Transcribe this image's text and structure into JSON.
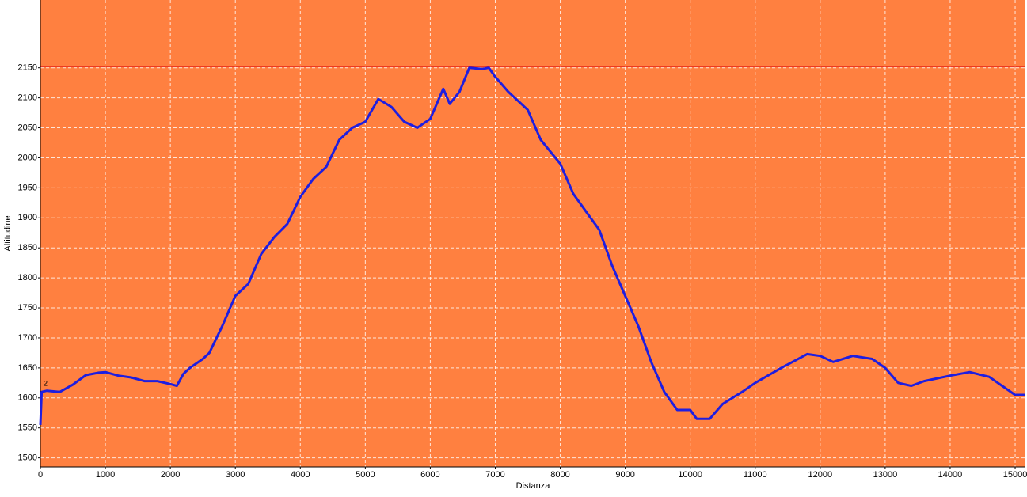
{
  "chart_data": {
    "type": "line",
    "x_label": "Distanza",
    "y_label": "Altitudine",
    "annotation": "2",
    "x": [
      0,
      20,
      100,
      300,
      500,
      700,
      900,
      1000,
      1200,
      1400,
      1600,
      1800,
      2000,
      2100,
      2200,
      2300,
      2500,
      2600,
      2800,
      3000,
      3200,
      3400,
      3600,
      3800,
      4000,
      4200,
      4400,
      4600,
      4800,
      5000,
      5200,
      5400,
      5600,
      5800,
      6000,
      6200,
      6300,
      6450,
      6600,
      6800,
      6900,
      7000,
      7200,
      7500,
      7700,
      8000,
      8200,
      8400,
      8600,
      8800,
      9000,
      9200,
      9400,
      9600,
      9800,
      10000,
      10100,
      10300,
      10500,
      10800,
      11000,
      11400,
      11800,
      12000,
      12200,
      12500,
      12800,
      13000,
      13200,
      13400,
      13600,
      14000,
      14300,
      14600,
      14800,
      15000,
      15150
    ],
    "values": [
      1555,
      1610,
      1612,
      1610,
      1622,
      1638,
      1642,
      1643,
      1637,
      1634,
      1628,
      1628,
      1623,
      1620,
      1640,
      1650,
      1665,
      1675,
      1720,
      1770,
      1790,
      1840,
      1868,
      1890,
      1935,
      1965,
      1985,
      2030,
      2050,
      2060,
      2098,
      2085,
      2060,
      2050,
      2065,
      2115,
      2090,
      2110,
      2150,
      2148,
      2150,
      2135,
      2110,
      2080,
      2030,
      1990,
      1940,
      1910,
      1880,
      1820,
      1770,
      1720,
      1660,
      1610,
      1580,
      1580,
      1565,
      1565,
      1590,
      1610,
      1625,
      1650,
      1673,
      1670,
      1660,
      1670,
      1665,
      1650,
      1625,
      1620,
      1628,
      1637,
      1643,
      1635,
      1620,
      1605,
      1605
    ],
    "color": "#1e1ee0",
    "background": "#ff8040",
    "reference_line": {
      "value": 2152,
      "color": "#e01010"
    },
    "xlim": [
      0,
      15158
    ],
    "ylim": [
      1485,
      2263
    ],
    "xticks": [
      0,
      1000,
      2000,
      3000,
      4000,
      5000,
      6000,
      7000,
      8000,
      9000,
      10000,
      11000,
      12000,
      13000,
      14000,
      15000
    ],
    "yticks": [
      1500,
      1550,
      1600,
      1650,
      1700,
      1750,
      1800,
      1850,
      1900,
      1950,
      2000,
      2050,
      2100,
      2150
    ],
    "grid": true
  }
}
